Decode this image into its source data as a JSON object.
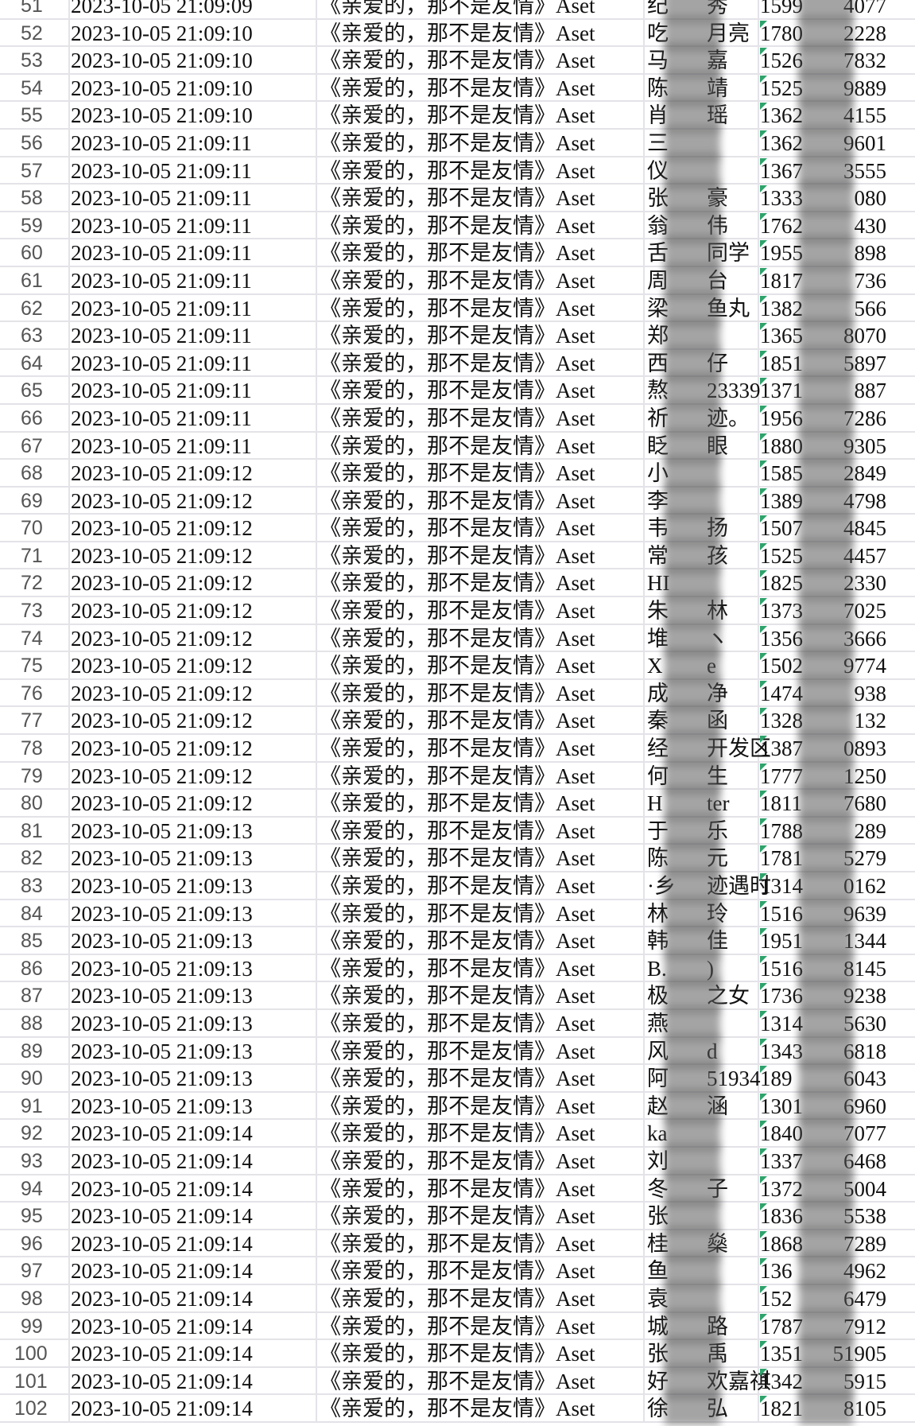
{
  "sheet": {
    "title_value": "《亲爱的，那不是友情》Aset",
    "phone_marker_color": "#2ea36b",
    "rows": [
      {
        "n": "51",
        "dt": "2023-10-05 21:09:09",
        "name": [
          "纪",
          "秀"
        ],
        "phone": [
          "1599",
          "4077"
        ]
      },
      {
        "n": "52",
        "dt": "2023-10-05 21:09:10",
        "name": [
          "吃",
          "月亮"
        ],
        "phone": [
          "1780",
          "2228"
        ]
      },
      {
        "n": "53",
        "dt": "2023-10-05 21:09:10",
        "name": [
          "马",
          "嘉"
        ],
        "phone": [
          "1526",
          "7832"
        ]
      },
      {
        "n": "54",
        "dt": "2023-10-05 21:09:10",
        "name": [
          "陈",
          "靖"
        ],
        "phone": [
          "1525",
          "9889"
        ]
      },
      {
        "n": "55",
        "dt": "2023-10-05 21:09:10",
        "name": [
          "肖",
          "瑶"
        ],
        "phone": [
          "1362",
          "4155"
        ]
      },
      {
        "n": "56",
        "dt": "2023-10-05 21:09:11",
        "name": [
          "三",
          ""
        ],
        "phone": [
          "1362",
          "9601"
        ]
      },
      {
        "n": "57",
        "dt": "2023-10-05 21:09:11",
        "name": [
          "仪",
          ""
        ],
        "phone": [
          "1367",
          "3555"
        ]
      },
      {
        "n": "58",
        "dt": "2023-10-05 21:09:11",
        "name": [
          "张",
          "豪"
        ],
        "phone": [
          "1333",
          "080"
        ]
      },
      {
        "n": "59",
        "dt": "2023-10-05 21:09:11",
        "name": [
          "翁",
          "伟"
        ],
        "phone": [
          "1762",
          "430"
        ]
      },
      {
        "n": "60",
        "dt": "2023-10-05 21:09:11",
        "name": [
          "舌",
          "同学"
        ],
        "phone": [
          "1955",
          "898"
        ]
      },
      {
        "n": "61",
        "dt": "2023-10-05 21:09:11",
        "name": [
          "周",
          "台"
        ],
        "phone": [
          "1817",
          "736"
        ]
      },
      {
        "n": "62",
        "dt": "2023-10-05 21:09:11",
        "name": [
          "梁",
          "鱼丸"
        ],
        "phone": [
          "1382",
          "566"
        ]
      },
      {
        "n": "63",
        "dt": "2023-10-05 21:09:11",
        "name": [
          "郑",
          ""
        ],
        "phone": [
          "1365",
          "8070"
        ]
      },
      {
        "n": "64",
        "dt": "2023-10-05 21:09:11",
        "name": [
          "西",
          "仔"
        ],
        "phone": [
          "1851",
          "5897"
        ]
      },
      {
        "n": "65",
        "dt": "2023-10-05 21:09:11",
        "name": [
          "熬",
          "23339"
        ],
        "phone": [
          "1371",
          "887"
        ]
      },
      {
        "n": "66",
        "dt": "2023-10-05 21:09:11",
        "name": [
          "祈",
          "迹。"
        ],
        "phone": [
          "1956",
          "7286"
        ]
      },
      {
        "n": "67",
        "dt": "2023-10-05 21:09:11",
        "name": [
          "眨",
          "眼"
        ],
        "phone": [
          "1880",
          "9305"
        ]
      },
      {
        "n": "68",
        "dt": "2023-10-05 21:09:12",
        "name": [
          "小",
          ""
        ],
        "phone": [
          "1585",
          "2849"
        ]
      },
      {
        "n": "69",
        "dt": "2023-10-05 21:09:12",
        "name": [
          "李",
          ""
        ],
        "phone": [
          "1389",
          "4798"
        ]
      },
      {
        "n": "70",
        "dt": "2023-10-05 21:09:12",
        "name": [
          "韦",
          "扬"
        ],
        "phone": [
          "1507",
          "4845"
        ]
      },
      {
        "n": "71",
        "dt": "2023-10-05 21:09:12",
        "name": [
          "常",
          "孩"
        ],
        "phone": [
          "1525",
          "4457"
        ]
      },
      {
        "n": "72",
        "dt": "2023-10-05 21:09:12",
        "name": [
          "HI",
          ""
        ],
        "phone": [
          "1825",
          "2330"
        ]
      },
      {
        "n": "73",
        "dt": "2023-10-05 21:09:12",
        "name": [
          "朱",
          "林"
        ],
        "phone": [
          "1373",
          "7025"
        ]
      },
      {
        "n": "74",
        "dt": "2023-10-05 21:09:12",
        "name": [
          "堆",
          "ヽ"
        ],
        "phone": [
          "1356",
          "3666"
        ]
      },
      {
        "n": "75",
        "dt": "2023-10-05 21:09:12",
        "name": [
          "X",
          "e"
        ],
        "phone": [
          "1502",
          "9774"
        ]
      },
      {
        "n": "76",
        "dt": "2023-10-05 21:09:12",
        "name": [
          "成",
          "净"
        ],
        "phone": [
          "1474",
          "938"
        ]
      },
      {
        "n": "77",
        "dt": "2023-10-05 21:09:12",
        "name": [
          "秦",
          "函"
        ],
        "phone": [
          "1328",
          "132"
        ]
      },
      {
        "n": "78",
        "dt": "2023-10-05 21:09:12",
        "name": [
          "经",
          "开发区"
        ],
        "phone": [
          "1387",
          "0893"
        ]
      },
      {
        "n": "79",
        "dt": "2023-10-05 21:09:12",
        "name": [
          "何",
          "生"
        ],
        "phone": [
          "1777",
          "1250"
        ]
      },
      {
        "n": "80",
        "dt": "2023-10-05 21:09:12",
        "name": [
          "H",
          "ter"
        ],
        "phone": [
          "1811",
          "7680"
        ]
      },
      {
        "n": "81",
        "dt": "2023-10-05 21:09:13",
        "name": [
          "于",
          "乐"
        ],
        "phone": [
          "1788",
          "289"
        ]
      },
      {
        "n": "82",
        "dt": "2023-10-05 21:09:13",
        "name": [
          "陈",
          "元"
        ],
        "phone": [
          "1781",
          "5279"
        ]
      },
      {
        "n": "83",
        "dt": "2023-10-05 21:09:13",
        "name": [
          "·乡",
          "迹遇时"
        ],
        "phone": [
          "1314",
          "0162"
        ]
      },
      {
        "n": "84",
        "dt": "2023-10-05 21:09:13",
        "name": [
          "林",
          "玲"
        ],
        "phone": [
          "1516",
          "9639"
        ]
      },
      {
        "n": "85",
        "dt": "2023-10-05 21:09:13",
        "name": [
          "韩",
          "佳"
        ],
        "phone": [
          "1951",
          "1344"
        ]
      },
      {
        "n": "86",
        "dt": "2023-10-05 21:09:13",
        "name": [
          "B.",
          ")"
        ],
        "phone": [
          "1516",
          "8145"
        ]
      },
      {
        "n": "87",
        "dt": "2023-10-05 21:09:13",
        "name": [
          "极",
          "之女"
        ],
        "phone": [
          "1736",
          "9238"
        ]
      },
      {
        "n": "88",
        "dt": "2023-10-05 21:09:13",
        "name": [
          "燕",
          ""
        ],
        "phone": [
          "1314",
          "5630"
        ]
      },
      {
        "n": "89",
        "dt": "2023-10-05 21:09:13",
        "name": [
          "风",
          "d"
        ],
        "phone": [
          "1343",
          "6818"
        ]
      },
      {
        "n": "90",
        "dt": "2023-10-05 21:09:13",
        "name": [
          "阿",
          "51934"
        ],
        "phone": [
          "189",
          "6043"
        ]
      },
      {
        "n": "91",
        "dt": "2023-10-05 21:09:13",
        "name": [
          "赵",
          "涵"
        ],
        "phone": [
          "1301",
          "6960"
        ]
      },
      {
        "n": "92",
        "dt": "2023-10-05 21:09:14",
        "name": [
          "ka",
          ""
        ],
        "phone": [
          "1840",
          "7077"
        ]
      },
      {
        "n": "93",
        "dt": "2023-10-05 21:09:14",
        "name": [
          "刘",
          ""
        ],
        "phone": [
          "1337",
          "6468"
        ]
      },
      {
        "n": "94",
        "dt": "2023-10-05 21:09:14",
        "name": [
          "冬",
          "子"
        ],
        "phone": [
          "1372",
          "5004"
        ]
      },
      {
        "n": "95",
        "dt": "2023-10-05 21:09:14",
        "name": [
          "张",
          ""
        ],
        "phone": [
          "1836",
          "5538"
        ]
      },
      {
        "n": "96",
        "dt": "2023-10-05 21:09:14",
        "name": [
          "桂",
          "燊"
        ],
        "phone": [
          "1868",
          "7289"
        ]
      },
      {
        "n": "97",
        "dt": "2023-10-05 21:09:14",
        "name": [
          "鱼",
          ""
        ],
        "phone": [
          "136",
          "4962"
        ]
      },
      {
        "n": "98",
        "dt": "2023-10-05 21:09:14",
        "name": [
          "袁",
          ""
        ],
        "phone": [
          "152",
          "6479"
        ]
      },
      {
        "n": "99",
        "dt": "2023-10-05 21:09:14",
        "name": [
          "城",
          "路"
        ],
        "phone": [
          "1787",
          "7912"
        ]
      },
      {
        "n": "100",
        "dt": "2023-10-05 21:09:14",
        "name": [
          "张",
          "禹"
        ],
        "phone": [
          "1351",
          "51905"
        ]
      },
      {
        "n": "101",
        "dt": "2023-10-05 21:09:14",
        "name": [
          "好",
          "欢嘉祺"
        ],
        "phone": [
          "1342",
          "5915"
        ]
      },
      {
        "n": "102",
        "dt": "2023-10-05 21:09:14",
        "name": [
          "徐",
          "弘"
        ],
        "phone": [
          "1821",
          "8105"
        ]
      }
    ]
  }
}
